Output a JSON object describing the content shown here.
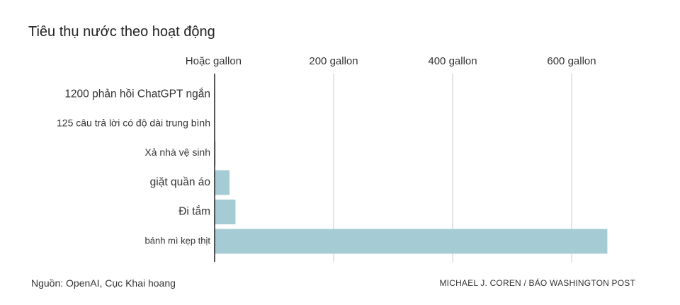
{
  "title": "Tiêu thụ nước theo hoạt động",
  "source": "Nguồn: OpenAI, Cục Khai hoang",
  "credit": "MICHAEL J. COREN / BÁO WASHINGTON POST",
  "chart_data": {
    "type": "bar",
    "orientation": "horizontal",
    "unit": "gallon",
    "categories": [
      "1200 phản hồi ChatGPT ngắn",
      "125 câu trả lời có độ dài trung bình",
      "Xả nhà vệ sinh",
      "giặt quần áo",
      "Đi tắm",
      "bánh mì kẹp thịt"
    ],
    "values": [
      0.16,
      0.4,
      1.6,
      25,
      35,
      660
    ],
    "x_ticks": [
      0,
      200,
      400,
      600
    ],
    "x_tick_labels": [
      "Hoặc gallon",
      "200 gallon",
      "400 gallon",
      "600 gallon"
    ],
    "xlim": [
      0,
      660
    ],
    "bar_color": "#a5ccd5",
    "grid": true
  }
}
